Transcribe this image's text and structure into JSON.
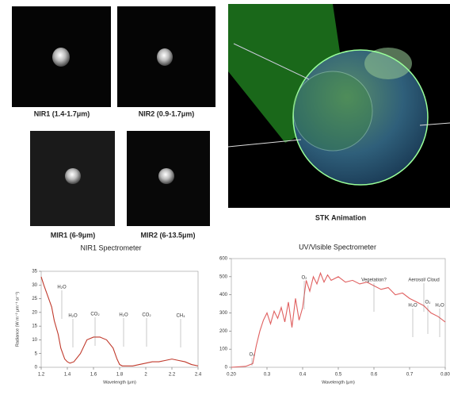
{
  "panels": [
    {
      "caption": "NIR1 (1.4-1.7μm)"
    },
    {
      "caption": "NIR2 (0.9-1.7μm)"
    },
    {
      "caption": "MIR1 (6-9μm)"
    },
    {
      "caption": "MIR2 (6-13.5μm)"
    },
    {
      "caption": "STK Animation"
    }
  ],
  "chart_data": [
    {
      "type": "line",
      "title": "NIR1 Spectrometer",
      "x_label": "Wavelength (μm)",
      "y_label": "Radiance (W m⁻² μm⁻¹ sr⁻¹)",
      "x": [
        1.2,
        1.22,
        1.25,
        1.28,
        1.3,
        1.33,
        1.35,
        1.38,
        1.4,
        1.42,
        1.45,
        1.5,
        1.55,
        1.6,
        1.65,
        1.7,
        1.75,
        1.78,
        1.8,
        1.82,
        1.85,
        1.9,
        1.95,
        2.0,
        2.05,
        2.1,
        2.15,
        2.2,
        2.25,
        2.3,
        2.35,
        2.4
      ],
      "series": [
        {
          "color": "#c0392b",
          "values": [
            33,
            30,
            26,
            22,
            17,
            12,
            7,
            3,
            2,
            1.5,
            2,
            5,
            10,
            11,
            11,
            10,
            7,
            3,
            1,
            0.5,
            0.5,
            0.5,
            1,
            1.5,
            2,
            2,
            2.5,
            3,
            2.5,
            2,
            1,
            0.5
          ]
        }
      ],
      "xlim": [
        1.2,
        2.4
      ],
      "xticks": [
        1.2,
        1.4,
        1.6,
        1.8,
        2,
        2.2,
        2.4
      ],
      "ylim": [
        0,
        35
      ],
      "yticks": [
        0,
        5,
        10,
        15,
        20,
        25,
        30,
        35
      ],
      "annotations": [
        "H₂O",
        "H₂O",
        "CO₂",
        "H₂O",
        "CO₂",
        "CH₄"
      ]
    },
    {
      "type": "line",
      "title": "UV/Visible Spectrometer",
      "x_label": "Wavelength (μm)",
      "x": [
        0.2,
        0.24,
        0.26,
        0.27,
        0.28,
        0.29,
        0.3,
        0.31,
        0.32,
        0.33,
        0.34,
        0.35,
        0.36,
        0.37,
        0.38,
        0.39,
        0.4,
        0.41,
        0.42,
        0.43,
        0.44,
        0.45,
        0.46,
        0.47,
        0.48,
        0.5,
        0.52,
        0.54,
        0.56,
        0.58,
        0.6,
        0.62,
        0.64,
        0.66,
        0.68,
        0.7,
        0.72,
        0.74,
        0.76,
        0.78,
        0.8
      ],
      "series": [
        {
          "color": "#e06060",
          "values": [
            0,
            5,
            20,
            120,
            200,
            260,
            300,
            240,
            310,
            270,
            330,
            250,
            360,
            220,
            380,
            260,
            330,
            480,
            420,
            500,
            460,
            520,
            470,
            510,
            480,
            500,
            470,
            480,
            460,
            470,
            450,
            430,
            440,
            400,
            410,
            380,
            360,
            340,
            300,
            280,
            250
          ]
        }
      ],
      "xlim": [
        0.2,
        0.8
      ],
      "xticks": [
        {
          "value": 0.2,
          "label": "0.20"
        },
        0.3,
        0.4,
        0.5,
        0.6,
        0.7,
        {
          "value": 0.8,
          "label": "0.80"
        }
      ],
      "ylim": [
        0,
        600
      ],
      "yticks": [
        0,
        100,
        200,
        300,
        400,
        500,
        600
      ],
      "annotations": [
        "O₃",
        "O₂",
        "Vegetation?",
        "Aerosol/ Cloud",
        "H₂O",
        "O₂",
        "H₂O"
      ]
    }
  ]
}
